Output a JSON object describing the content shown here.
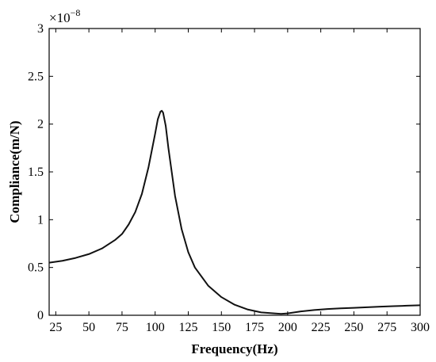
{
  "chart_data": {
    "type": "line",
    "title": "",
    "xlabel": "Frequency(Hz)",
    "ylabel": "Compliance(m/N)",
    "xlim": [
      20,
      300
    ],
    "ylim": [
      0,
      3
    ],
    "y_scale_multiplier": "×10",
    "y_scale_exponent": "−8",
    "grid": false,
    "legend": "none",
    "line_color": "#111111",
    "xticks": [
      25,
      50,
      75,
      100,
      125,
      150,
      175,
      200,
      225,
      250,
      275,
      300
    ],
    "xtick_labels": [
      "25",
      "50",
      "75",
      "100",
      "125",
      "150",
      "175",
      "200",
      "225",
      "250",
      "275",
      "300"
    ],
    "yticks": [
      0,
      0.5,
      1,
      1.5,
      2,
      2.5,
      3
    ],
    "ytick_labels": [
      "0",
      "0.5",
      "1",
      "1.5",
      "2",
      "2.5",
      "3"
    ],
    "series": [
      {
        "x": [
          20,
          30,
          40,
          50,
          60,
          70,
          75,
          80,
          85,
          90,
          95,
          100,
          102,
          104,
          105,
          106,
          108,
          110,
          115,
          120,
          125,
          130,
          140,
          150,
          160,
          170,
          180,
          190,
          195,
          200,
          210,
          220,
          230,
          240,
          250,
          260,
          270,
          280,
          290,
          300
        ],
        "y": [
          0.55,
          0.57,
          0.6,
          0.64,
          0.7,
          0.79,
          0.85,
          0.95,
          1.08,
          1.27,
          1.55,
          1.9,
          2.05,
          2.13,
          2.14,
          2.12,
          1.98,
          1.75,
          1.25,
          0.9,
          0.66,
          0.5,
          0.31,
          0.19,
          0.11,
          0.06,
          0.03,
          0.02,
          0.015,
          0.02,
          0.04,
          0.055,
          0.065,
          0.072,
          0.078,
          0.084,
          0.09,
          0.095,
          0.1,
          0.105
        ]
      }
    ]
  }
}
